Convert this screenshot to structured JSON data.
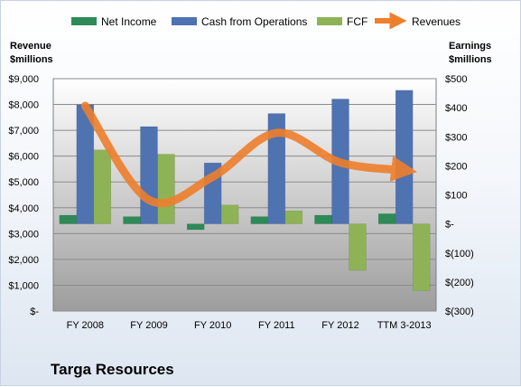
{
  "chart_data": {
    "type": "bar",
    "title": "",
    "company": "Targa Resources",
    "categories": [
      "FY 2008",
      "FY 2009",
      "FY 2010",
      "FY 2011",
      "FY 2012",
      "TTM 3-2013"
    ],
    "left_axis": {
      "label_line1": "Revenue",
      "label_line2": "$millions",
      "range": [
        0,
        9000
      ],
      "ticks": [
        "$-",
        "$1,000",
        "$2,000",
        "$3,000",
        "$4,000",
        "$5,000",
        "$6,000",
        "$7,000",
        "$8,000",
        "$9,000"
      ]
    },
    "right_axis": {
      "label_line1": "Earnings",
      "label_line2": "$millions",
      "range": [
        -300,
        500
      ],
      "ticks": [
        "$(300)",
        "$(200)",
        "$(100)",
        "$-",
        "$100",
        "$200",
        "$300",
        "$400",
        "$500"
      ]
    },
    "series": [
      {
        "name": "Net Income",
        "type": "bar",
        "axis": "right",
        "color": "#2e8a57",
        "values": [
          30,
          25,
          -20,
          25,
          30,
          35
        ]
      },
      {
        "name": "Cash from Operations",
        "type": "bar",
        "axis": "right",
        "color": "#4f72b0",
        "values": [
          410,
          335,
          210,
          380,
          430,
          460
        ]
      },
      {
        "name": "FCF",
        "type": "bar",
        "axis": "right",
        "color": "#8db356",
        "values": [
          255,
          240,
          65,
          45,
          -160,
          -230
        ]
      },
      {
        "name": "Revenues",
        "type": "line",
        "axis": "left",
        "color": "#ee7f2d",
        "values": [
          7950,
          4300,
          5200,
          6900,
          5750,
          5450
        ]
      }
    ],
    "grid": true,
    "legend_position": "top"
  }
}
